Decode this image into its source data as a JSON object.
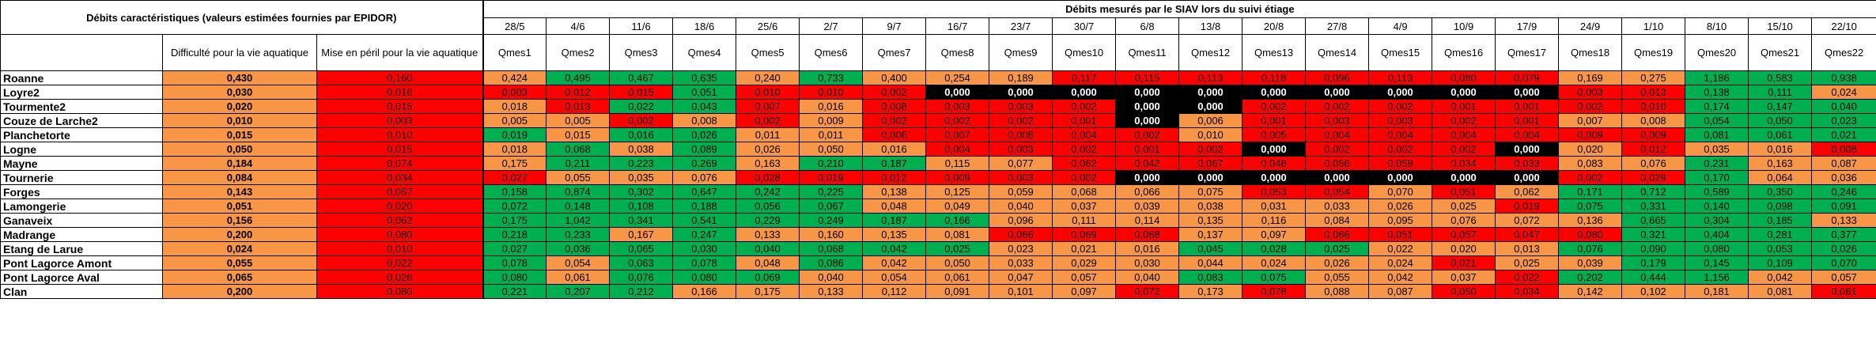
{
  "header": {
    "left_title": "Débits caractéristiques (valeurs estimées fournies par EPIDOR)",
    "right_title": "Débits mesurés par le SIAV lors du suivi étiage",
    "col_difficulty": "Difficulté pour la vie aquatique",
    "col_peril": "Mise en péril pour la vie aquatique"
  },
  "dates": [
    "28/5",
    "4/6",
    "11/6",
    "18/6",
    "25/6",
    "2/7",
    "9/7",
    "16/7",
    "23/7",
    "30/7",
    "6/8",
    "13/8",
    "20/8",
    "27/8",
    "4/9",
    "10/9",
    "17/9",
    "24/9",
    "1/10",
    "8/10",
    "15/10",
    "22/10"
  ],
  "qmes": [
    "Qmes1",
    "Qmes2",
    "Qmes3",
    "Qmes4",
    "Qmes5",
    "Qmes6",
    "Qmes7",
    "Qmes8",
    "Qmes9",
    "Qmes10",
    "Qmes11",
    "Qmes12",
    "Qmes13",
    "Qmes14",
    "Qmes15",
    "Qmes16",
    "Qmes17",
    "Qmes18",
    "Qmes19",
    "Qmes20",
    "Qmes21",
    "Qmes22"
  ],
  "legend_colors": {
    "orange": "#f79646",
    "green": "#00b050",
    "red": "#ff0000",
    "black": "#000000"
  },
  "rows": [
    {
      "site": "Roanne",
      "difficulty": "0,430",
      "peril": "0,160",
      "values": [
        "0,424",
        "0,495",
        "0,467",
        "0,635",
        "0,240",
        "0,733",
        "0,400",
        "0,254",
        "0,189",
        "0,117",
        "0,115",
        "0,113",
        "0,118",
        "0,096",
        "0,113",
        "0,080",
        "0,079",
        "0,169",
        "0,275",
        "1,186",
        "0,583",
        "0,938"
      ],
      "colors": [
        "o",
        "g",
        "g",
        "g",
        "o",
        "g",
        "o",
        "o",
        "o",
        "r",
        "r",
        "r",
        "r",
        "r",
        "r",
        "r",
        "r",
        "o",
        "o",
        "g",
        "g",
        "g"
      ]
    },
    {
      "site": "Loyre2",
      "difficulty": "0,030",
      "peril": "0,016",
      "values": [
        "0,003",
        "0,012",
        "0,015",
        "0,051",
        "0,010",
        "0,010",
        "0,002",
        "0,000",
        "0,000",
        "0,000",
        "0,000",
        "0,000",
        "0,000",
        "0,000",
        "0,000",
        "0,000",
        "0,000",
        "0,003",
        "0,013",
        "0,138",
        "0,111",
        "0,024"
      ],
      "colors": [
        "r",
        "r",
        "r",
        "g",
        "r",
        "r",
        "r",
        "b",
        "b",
        "b",
        "b",
        "b",
        "b",
        "b",
        "b",
        "b",
        "b",
        "r",
        "r",
        "g",
        "g",
        "o"
      ]
    },
    {
      "site": "Tourmente2",
      "difficulty": "0,020",
      "peril": "0,015",
      "values": [
        "0,018",
        "0,013",
        "0,022",
        "0,043",
        "0,007",
        "0,016",
        "0,008",
        "0,003",
        "0,003",
        "0,002",
        "0,000",
        "0,000",
        "0,002",
        "0,002",
        "0,002",
        "0,001",
        "0,001",
        "0,002",
        "0,010",
        "0,174",
        "0,147",
        "0,040"
      ],
      "colors": [
        "o",
        "r",
        "g",
        "g",
        "r",
        "o",
        "r",
        "r",
        "r",
        "r",
        "b",
        "b",
        "r",
        "r",
        "r",
        "r",
        "r",
        "r",
        "r",
        "g",
        "g",
        "g"
      ]
    },
    {
      "site": "Couze de Larche2",
      "difficulty": "0,010",
      "peril": "0,003",
      "values": [
        "0,005",
        "0,005",
        "0,002",
        "0,008",
        "0,002",
        "0,009",
        "0,002",
        "0,002",
        "0,002",
        "0,001",
        "0,000",
        "0,006",
        "0,001",
        "0,003",
        "0,003",
        "0,002",
        "0,001",
        "0,007",
        "0,008",
        "0,054",
        "0,050",
        "0,023"
      ],
      "colors": [
        "o",
        "o",
        "r",
        "o",
        "r",
        "o",
        "r",
        "r",
        "r",
        "r",
        "b",
        "o",
        "r",
        "r",
        "r",
        "r",
        "r",
        "o",
        "o",
        "g",
        "g",
        "g"
      ]
    },
    {
      "site": "Planchetorte",
      "difficulty": "0,015",
      "peril": "0,010",
      "values": [
        "0,019",
        "0,015",
        "0,016",
        "0,026",
        "0,011",
        "0,011",
        "0,006",
        "0,007",
        "0,008",
        "0,004",
        "0,002",
        "0,010",
        "0,005",
        "0,004",
        "0,004",
        "0,004",
        "0,004",
        "0,009",
        "0,009",
        "0,081",
        "0,061",
        "0,021"
      ],
      "colors": [
        "g",
        "o",
        "g",
        "g",
        "o",
        "o",
        "r",
        "r",
        "r",
        "r",
        "r",
        "o",
        "r",
        "r",
        "r",
        "r",
        "r",
        "r",
        "r",
        "g",
        "g",
        "g"
      ]
    },
    {
      "site": "Logne",
      "difficulty": "0,050",
      "peril": "0,015",
      "values": [
        "0,018",
        "0,068",
        "0,038",
        "0,089",
        "0,026",
        "0,050",
        "0,016",
        "0,004",
        "0,003",
        "0,002",
        "0,001",
        "0,002",
        "0,000",
        "0,002",
        "0,002",
        "0,002",
        "0,000",
        "0,020",
        "0,012",
        "0,035",
        "0,016",
        "0,008"
      ],
      "colors": [
        "o",
        "g",
        "o",
        "g",
        "o",
        "o",
        "o",
        "r",
        "r",
        "r",
        "r",
        "r",
        "b",
        "r",
        "r",
        "r",
        "b",
        "o",
        "r",
        "o",
        "o",
        "r"
      ]
    },
    {
      "site": "Mayne",
      "difficulty": "0,184",
      "peril": "0,074",
      "values": [
        "0,175",
        "0,211",
        "0,223",
        "0,269",
        "0,163",
        "0,210",
        "0,187",
        "0,115",
        "0,077",
        "0,062",
        "0,042",
        "0,067",
        "0,048",
        "0,056",
        "0,059",
        "0,034",
        "0,033",
        "0,083",
        "0,076",
        "0,231",
        "0,163",
        "0,087"
      ],
      "colors": [
        "o",
        "g",
        "g",
        "g",
        "o",
        "g",
        "g",
        "o",
        "o",
        "r",
        "r",
        "r",
        "r",
        "r",
        "r",
        "r",
        "r",
        "o",
        "o",
        "g",
        "o",
        "o"
      ]
    },
    {
      "site": "Tournerie",
      "difficulty": "0,084",
      "peril": "0,034",
      "values": [
        "0,027",
        "0,055",
        "0,035",
        "0,076",
        "0,028",
        "0,019",
        "0,012",
        "0,009",
        "0,003",
        "0,002",
        "0,000",
        "0,000",
        "0,000",
        "0,000",
        "0,000",
        "0,000",
        "0,000",
        "0,002",
        "0,029",
        "0,170",
        "0,064",
        "0,036"
      ],
      "colors": [
        "r",
        "o",
        "o",
        "o",
        "r",
        "r",
        "r",
        "r",
        "r",
        "r",
        "b",
        "b",
        "b",
        "b",
        "b",
        "b",
        "b",
        "r",
        "r",
        "g",
        "o",
        "o"
      ]
    },
    {
      "site": "Forges",
      "difficulty": "0,143",
      "peril": "0,057",
      "values": [
        "0,158",
        "0,874",
        "0,302",
        "0,647",
        "0,242",
        "0,225",
        "0,138",
        "0,125",
        "0,059",
        "0,068",
        "0,066",
        "0,075",
        "0,053",
        "0,054",
        "0,070",
        "0,051",
        "0,062",
        "0,171",
        "0,712",
        "0,589",
        "0,350",
        "0,246"
      ],
      "colors": [
        "g",
        "g",
        "g",
        "g",
        "g",
        "g",
        "o",
        "o",
        "o",
        "o",
        "o",
        "o",
        "r",
        "r",
        "o",
        "r",
        "o",
        "g",
        "g",
        "g",
        "g",
        "g"
      ]
    },
    {
      "site": "Lamongerie",
      "difficulty": "0,051",
      "peril": "0,020",
      "values": [
        "0,072",
        "0,148",
        "0,108",
        "0,188",
        "0,056",
        "0,067",
        "0,048",
        "0,049",
        "0,040",
        "0,037",
        "0,039",
        "0,038",
        "0,031",
        "0,033",
        "0,026",
        "0,025",
        "0,019",
        "0,075",
        "0,331",
        "0,140",
        "0,098",
        "0,091"
      ],
      "colors": [
        "g",
        "g",
        "g",
        "g",
        "g",
        "g",
        "o",
        "o",
        "o",
        "o",
        "o",
        "o",
        "o",
        "o",
        "o",
        "o",
        "r",
        "g",
        "g",
        "g",
        "g",
        "g"
      ]
    },
    {
      "site": "Ganaveix",
      "difficulty": "0,156",
      "peril": "0,062",
      "values": [
        "0,175",
        "1,042",
        "0,341",
        "0,541",
        "0,229",
        "0,249",
        "0,187",
        "0,166",
        "0,096",
        "0,111",
        "0,114",
        "0,135",
        "0,116",
        "0,084",
        "0,095",
        "0,076",
        "0,072",
        "0,136",
        "0,665",
        "0,304",
        "0,185",
        "0,133"
      ],
      "colors": [
        "g",
        "g",
        "g",
        "g",
        "g",
        "g",
        "g",
        "g",
        "o",
        "o",
        "o",
        "o",
        "o",
        "o",
        "o",
        "o",
        "o",
        "o",
        "g",
        "g",
        "g",
        "o"
      ]
    },
    {
      "site": "Madrange",
      "difficulty": "0,200",
      "peril": "0,080",
      "values": [
        "0,218",
        "0,233",
        "0,167",
        "0,247",
        "0,133",
        "0,160",
        "0,135",
        "0,081",
        "0,066",
        "0,069",
        "0,068",
        "0,137",
        "0,097",
        "0,066",
        "0,051",
        "0,057",
        "0,047",
        "0,080",
        "0,321",
        "0,404",
        "0,281",
        "0,377"
      ],
      "colors": [
        "g",
        "g",
        "o",
        "g",
        "o",
        "o",
        "o",
        "o",
        "r",
        "r",
        "r",
        "o",
        "o",
        "r",
        "r",
        "r",
        "r",
        "r",
        "g",
        "g",
        "g",
        "g"
      ]
    },
    {
      "site": "Etang de Larue",
      "difficulty": "0,024",
      "peril": "0,010",
      "values": [
        "0,027",
        "0,036",
        "0,065",
        "0,030",
        "0,040",
        "0,068",
        "0,042",
        "0,025",
        "0,023",
        "0,021",
        "0,016",
        "0,045",
        "0,028",
        "0,025",
        "0,022",
        "0,020",
        "0,013",
        "0,076",
        "0,090",
        "0,080",
        "0,053",
        "0,026"
      ],
      "colors": [
        "g",
        "g",
        "g",
        "g",
        "g",
        "g",
        "g",
        "g",
        "o",
        "o",
        "o",
        "g",
        "g",
        "g",
        "o",
        "o",
        "o",
        "g",
        "g",
        "g",
        "g",
        "g"
      ]
    },
    {
      "site": "Pont Lagorce Amont",
      "difficulty": "0,055",
      "peril": "0,022",
      "values": [
        "0,078",
        "0,054",
        "0,063",
        "0,078",
        "0,048",
        "0,086",
        "0,042",
        "0,050",
        "0,033",
        "0,029",
        "0,030",
        "0,044",
        "0,024",
        "0,026",
        "0,024",
        "0,021",
        "0,025",
        "0,039",
        "0,179",
        "0,145",
        "0,109",
        "0,070"
      ],
      "colors": [
        "g",
        "o",
        "g",
        "g",
        "o",
        "g",
        "o",
        "o",
        "o",
        "o",
        "o",
        "o",
        "o",
        "o",
        "o",
        "r",
        "o",
        "o",
        "g",
        "g",
        "g",
        "g"
      ]
    },
    {
      "site": "Pont Lagorce Aval",
      "difficulty": "0,065",
      "peril": "0,026",
      "values": [
        "0,080",
        "0,061",
        "0,076",
        "0,080",
        "0,069",
        "0,040",
        "0,054",
        "0,061",
        "0,047",
        "0,057",
        "0,040",
        "0,083",
        "0,075",
        "0,055",
        "0,042",
        "0,037",
        "0,022",
        "0,202",
        "0,444",
        "1,156",
        "0,042",
        "0,057"
      ],
      "colors": [
        "g",
        "o",
        "g",
        "g",
        "g",
        "o",
        "o",
        "o",
        "o",
        "o",
        "o",
        "g",
        "g",
        "o",
        "o",
        "o",
        "r",
        "g",
        "g",
        "g",
        "o",
        "o"
      ]
    },
    {
      "site": "Clan",
      "difficulty": "0,200",
      "peril": "0,080",
      "values": [
        "0,221",
        "0,207",
        "0,212",
        "0,166",
        "0,175",
        "0,133",
        "0,112",
        "0,091",
        "0,101",
        "0,097",
        "0,072",
        "0,173",
        "0,078",
        "0,088",
        "0,087",
        "0,050",
        "0,034",
        "0,142",
        "0,102",
        "0,181",
        "0,081",
        "0,061"
      ],
      "colors": [
        "g",
        "g",
        "g",
        "o",
        "o",
        "o",
        "o",
        "o",
        "o",
        "o",
        "r",
        "o",
        "r",
        "o",
        "o",
        "r",
        "r",
        "o",
        "o",
        "o",
        "o",
        "r"
      ]
    }
  ]
}
